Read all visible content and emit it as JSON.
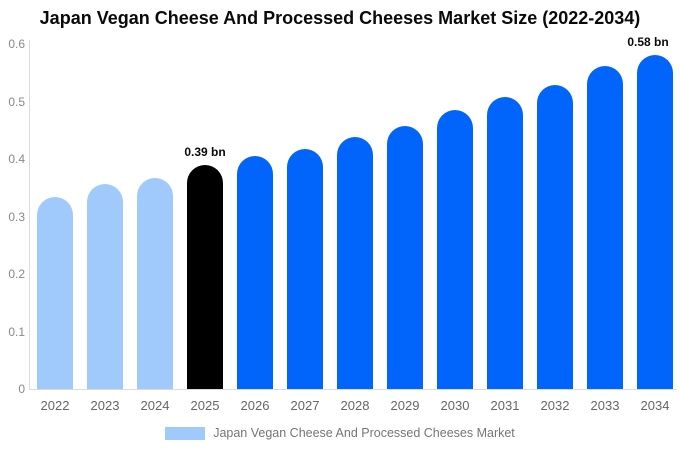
{
  "title": "Japan Vegan Cheese And Processed Cheeses Market Size (2022-2034)",
  "legend": {
    "label": "Japan Vegan Cheese And Processed Cheeses Market",
    "swatch_color": "#9FCAFB"
  },
  "colors": {
    "historical_bar": "#9FCAFB",
    "highlight_bar": "#000000",
    "forecast_bar": "#0165FC",
    "axis_line": "#DBDBDB",
    "y_tick_label": "#888888",
    "x_tick_label": "#666666",
    "legend_text": "#757575",
    "title_text": "#0a0a0a",
    "background": "#FFFFFF"
  },
  "chart_data": {
    "type": "bar",
    "title": "Japan Vegan Cheese And Processed Cheeses Market Size (2022-2034)",
    "categories": [
      "2022",
      "2023",
      "2024",
      "2025",
      "2026",
      "2027",
      "2028",
      "2029",
      "2030",
      "2031",
      "2032",
      "2033",
      "2034"
    ],
    "values": [
      0.334,
      0.357,
      0.367,
      0.39,
      0.406,
      0.418,
      0.439,
      0.457,
      0.486,
      0.507,
      0.529,
      0.561,
      0.58
    ],
    "unit": "bn",
    "bar_colors": [
      "#9FCAFB",
      "#9FCAFB",
      "#9FCAFB",
      "#000000",
      "#0165FC",
      "#0165FC",
      "#0165FC",
      "#0165FC",
      "#0165FC",
      "#0165FC",
      "#0165FC",
      "#0165FC",
      "#0165FC"
    ],
    "annotations": [
      {
        "category": "2025",
        "text": "0.39 bn"
      },
      {
        "category": "2034",
        "text": "0.58 bn"
      }
    ],
    "xlabel": "",
    "ylabel": "",
    "y_tick_labels": [
      "0",
      "0.1",
      "0.2",
      "0.3",
      "0.4",
      "0.5",
      "0.6"
    ],
    "y_ticks": [
      0,
      0.1,
      0.2,
      0.3,
      0.4,
      0.5,
      0.6
    ],
    "ylim": [
      0,
      0.6
    ],
    "grid": false,
    "legend_entries": [
      "Japan Vegan Cheese And Processed Cheeses Market"
    ],
    "legend_position": "bottom"
  }
}
